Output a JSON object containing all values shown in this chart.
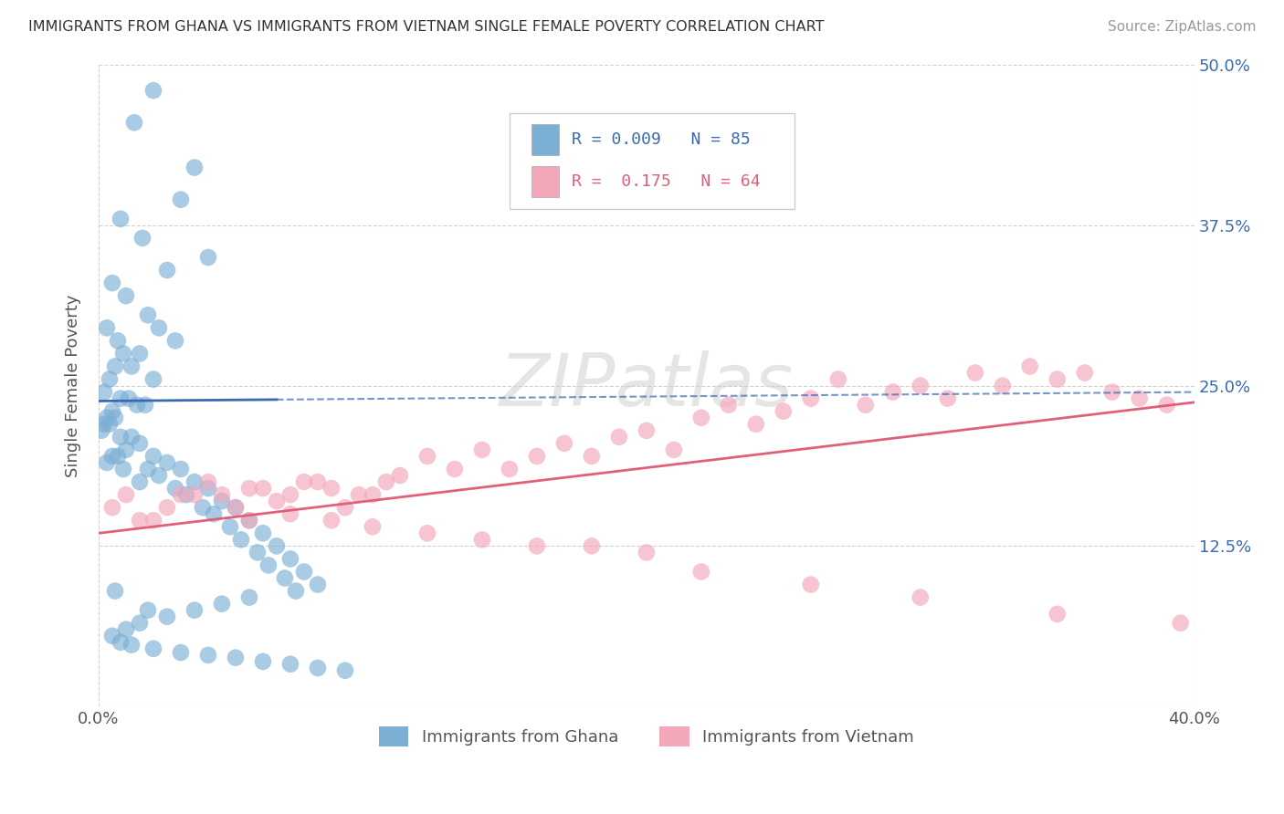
{
  "title": "IMMIGRANTS FROM GHANA VS IMMIGRANTS FROM VIETNAM SINGLE FEMALE POVERTY CORRELATION CHART",
  "source": "Source: ZipAtlas.com",
  "ylabel": "Single Female Poverty",
  "ghana_color": "#7bafd4",
  "vietnam_color": "#f4a7b9",
  "ghana_line_color": "#3a6ab0",
  "vietnam_line_color": "#e0607a",
  "background_color": "#ffffff",
  "grid_color": "#cccccc",
  "xlim": [
    0.0,
    0.4
  ],
  "ylim": [
    0.0,
    0.5
  ],
  "ghana_line_x0": 0.0,
  "ghana_line_x1": 0.4,
  "ghana_line_y0": 0.238,
  "ghana_line_y1": 0.245,
  "ghana_line_dashed_x0": 0.065,
  "ghana_line_dashed_x1": 0.4,
  "vietnam_line_x0": 0.0,
  "vietnam_line_x1": 0.4,
  "vietnam_line_y0": 0.135,
  "vietnam_line_y1": 0.237,
  "ghana_scatter_x": [
    0.02,
    0.013,
    0.035,
    0.03,
    0.008,
    0.016,
    0.04,
    0.025,
    0.005,
    0.01,
    0.018,
    0.022,
    0.028,
    0.015,
    0.012,
    0.02,
    0.003,
    0.007,
    0.009,
    0.006,
    0.004,
    0.002,
    0.008,
    0.011,
    0.014,
    0.017,
    0.005,
    0.003,
    0.006,
    0.002,
    0.004,
    0.001,
    0.008,
    0.012,
    0.015,
    0.01,
    0.007,
    0.005,
    0.003,
    0.009,
    0.02,
    0.025,
    0.018,
    0.03,
    0.022,
    0.015,
    0.035,
    0.028,
    0.04,
    0.032,
    0.045,
    0.038,
    0.05,
    0.042,
    0.055,
    0.048,
    0.06,
    0.052,
    0.065,
    0.058,
    0.07,
    0.062,
    0.075,
    0.068,
    0.08,
    0.072,
    0.055,
    0.045,
    0.035,
    0.025,
    0.015,
    0.01,
    0.005,
    0.008,
    0.012,
    0.02,
    0.03,
    0.04,
    0.05,
    0.06,
    0.07,
    0.08,
    0.09,
    0.006,
    0.018
  ],
  "ghana_scatter_y": [
    0.48,
    0.455,
    0.42,
    0.395,
    0.38,
    0.365,
    0.35,
    0.34,
    0.33,
    0.32,
    0.305,
    0.295,
    0.285,
    0.275,
    0.265,
    0.255,
    0.295,
    0.285,
    0.275,
    0.265,
    0.255,
    0.245,
    0.24,
    0.24,
    0.235,
    0.235,
    0.23,
    0.225,
    0.225,
    0.22,
    0.22,
    0.215,
    0.21,
    0.21,
    0.205,
    0.2,
    0.195,
    0.195,
    0.19,
    0.185,
    0.195,
    0.19,
    0.185,
    0.185,
    0.18,
    0.175,
    0.175,
    0.17,
    0.17,
    0.165,
    0.16,
    0.155,
    0.155,
    0.15,
    0.145,
    0.14,
    0.135,
    0.13,
    0.125,
    0.12,
    0.115,
    0.11,
    0.105,
    0.1,
    0.095,
    0.09,
    0.085,
    0.08,
    0.075,
    0.07,
    0.065,
    0.06,
    0.055,
    0.05,
    0.048,
    0.045,
    0.042,
    0.04,
    0.038,
    0.035,
    0.033,
    0.03,
    0.028,
    0.09,
    0.075
  ],
  "vietnam_scatter_x": [
    0.005,
    0.01,
    0.02,
    0.03,
    0.04,
    0.05,
    0.06,
    0.07,
    0.08,
    0.09,
    0.1,
    0.11,
    0.12,
    0.13,
    0.14,
    0.15,
    0.16,
    0.17,
    0.18,
    0.19,
    0.2,
    0.21,
    0.22,
    0.23,
    0.24,
    0.25,
    0.26,
    0.27,
    0.28,
    0.29,
    0.3,
    0.31,
    0.32,
    0.33,
    0.34,
    0.35,
    0.36,
    0.37,
    0.38,
    0.39,
    0.015,
    0.025,
    0.035,
    0.045,
    0.055,
    0.065,
    0.075,
    0.085,
    0.095,
    0.105,
    0.055,
    0.07,
    0.085,
    0.1,
    0.12,
    0.14,
    0.16,
    0.18,
    0.2,
    0.22,
    0.26,
    0.3,
    0.35,
    0.395
  ],
  "vietnam_scatter_y": [
    0.155,
    0.165,
    0.145,
    0.165,
    0.175,
    0.155,
    0.17,
    0.165,
    0.175,
    0.155,
    0.165,
    0.18,
    0.195,
    0.185,
    0.2,
    0.185,
    0.195,
    0.205,
    0.195,
    0.21,
    0.215,
    0.2,
    0.225,
    0.235,
    0.22,
    0.23,
    0.24,
    0.255,
    0.235,
    0.245,
    0.25,
    0.24,
    0.26,
    0.25,
    0.265,
    0.255,
    0.26,
    0.245,
    0.24,
    0.235,
    0.145,
    0.155,
    0.165,
    0.165,
    0.17,
    0.16,
    0.175,
    0.17,
    0.165,
    0.175,
    0.145,
    0.15,
    0.145,
    0.14,
    0.135,
    0.13,
    0.125,
    0.125,
    0.12,
    0.105,
    0.095,
    0.085,
    0.072,
    0.065
  ]
}
